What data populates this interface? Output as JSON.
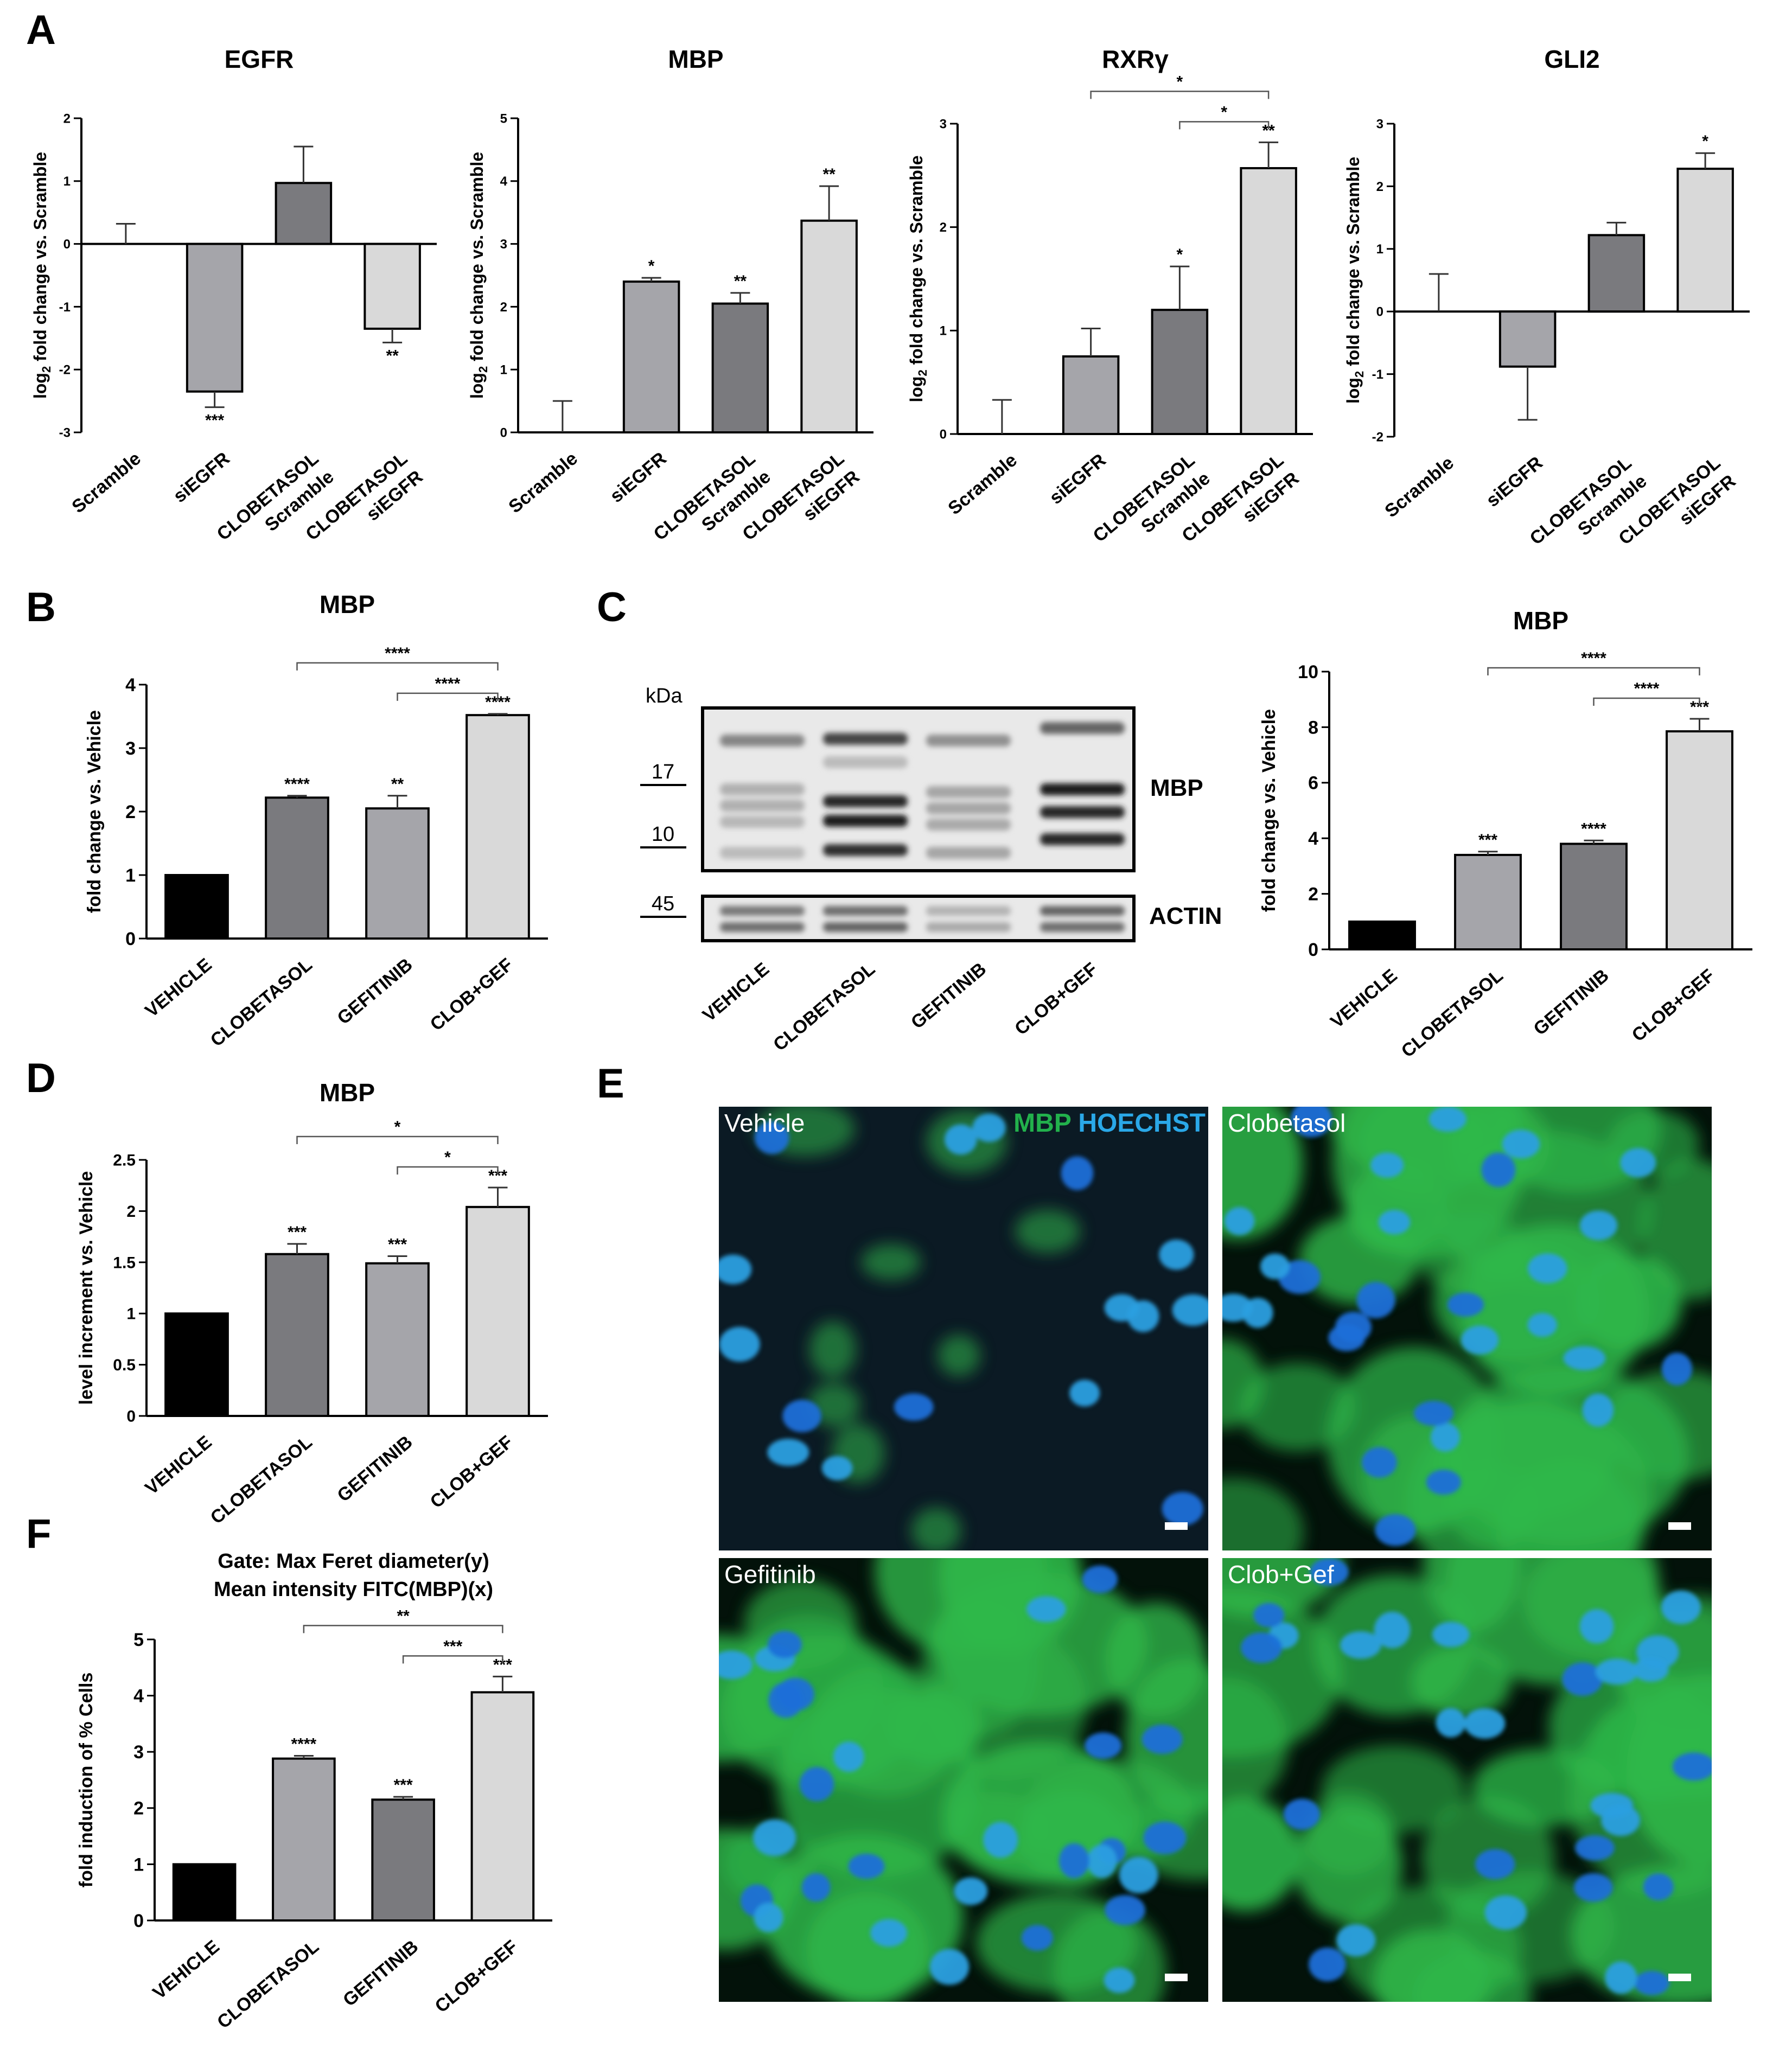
{
  "panels": {
    "A": "A",
    "B": "B",
    "C": "C",
    "D": "D",
    "E": "E",
    "F": "F"
  },
  "colors": {
    "black": "#000000",
    "light_gray": "#d9d9d9",
    "mid_gray": "#a5a5aa",
    "dark_gray": "#7a7a7e",
    "mbp_green": "#22b14c",
    "hoechst_blue": "#2aa8e8"
  },
  "chart_data": [
    {
      "id": "A-EGFR",
      "type": "bar",
      "title": "EGFR",
      "ylabel": "log2 fold change vs. Scramble",
      "ylim": [
        -3,
        2
      ],
      "yticks": [
        "-3",
        "-2",
        "-1",
        "0",
        "1",
        "2"
      ],
      "categories": [
        "Scramble",
        "siEGFR",
        "CLOBETASOL Scramble",
        "CLOBETASOL siEGFR"
      ],
      "category_lines": [
        [
          "Scramble"
        ],
        [
          "siEGFR"
        ],
        [
          "CLOBETASOL",
          "Scramble"
        ],
        [
          "CLOBETASOL",
          "siEGFR"
        ]
      ],
      "values": [
        0,
        -2.35,
        0.97,
        -1.35
      ],
      "errors": [
        0.32,
        0.25,
        0.58,
        0.22
      ],
      "colors": [
        "#ffffff",
        "#a5a5aa",
        "#7a7a7e",
        "#d9d9d9"
      ],
      "stars": [
        "",
        "***",
        "",
        "**"
      ],
      "brackets": []
    },
    {
      "id": "A-MBP",
      "type": "bar",
      "title": "MBP",
      "ylabel": "log2 fold change vs. Scramble",
      "ylim": [
        0,
        5
      ],
      "yticks": [
        "0",
        "1",
        "2",
        "3",
        "4",
        "5"
      ],
      "categories": [
        "Scramble",
        "siEGFR",
        "CLOBETASOL Scramble",
        "CLOBETASOL siEGFR"
      ],
      "category_lines": [
        [
          "Scramble"
        ],
        [
          "siEGFR"
        ],
        [
          "CLOBETASOL",
          "Scramble"
        ],
        [
          "CLOBETASOL",
          "siEGFR"
        ]
      ],
      "values": [
        0,
        2.4,
        2.05,
        3.37
      ],
      "errors": [
        0.5,
        0.06,
        0.17,
        0.55
      ],
      "colors": [
        "#ffffff",
        "#a5a5aa",
        "#7a7a7e",
        "#d9d9d9"
      ],
      "stars": [
        "",
        "*",
        "**",
        "**"
      ],
      "brackets": []
    },
    {
      "id": "A-RXRg",
      "type": "bar",
      "title": "RXRγ",
      "ylabel": "log2 fold change vs. Scramble",
      "ylim": [
        0,
        3
      ],
      "yticks": [
        "0",
        "1",
        "2",
        "3"
      ],
      "categories": [
        "Scramble",
        "siEGFR",
        "CLOBETASOL Scramble",
        "CLOBETASOL siEGFR"
      ],
      "category_lines": [
        [
          "Scramble"
        ],
        [
          "siEGFR"
        ],
        [
          "CLOBETASOL",
          "Scramble"
        ],
        [
          "CLOBETASOL",
          "siEGFR"
        ]
      ],
      "values": [
        0,
        0.75,
        1.2,
        2.57
      ],
      "errors": [
        0.33,
        0.27,
        0.42,
        0.25
      ],
      "colors": [
        "#ffffff",
        "#a5a5aa",
        "#7a7a7e",
        "#d9d9d9"
      ],
      "stars": [
        "",
        "",
        "*",
        "**"
      ],
      "brackets": [
        {
          "from": 1,
          "to": 3,
          "label": "*",
          "level": 2
        },
        {
          "from": 2,
          "to": 3,
          "label": "*",
          "level": 1
        }
      ]
    },
    {
      "id": "A-GLI2",
      "type": "bar",
      "title": "GLI2",
      "ylabel": "log2 fold change vs. Scramble",
      "ylim": [
        -2,
        3
      ],
      "yticks": [
        "-2",
        "-1",
        "0",
        "1",
        "2",
        "3"
      ],
      "categories": [
        "Scramble",
        "siEGFR",
        "CLOBETASOL Scramble",
        "CLOBETASOL siEGFR"
      ],
      "category_lines": [
        [
          "Scramble"
        ],
        [
          "siEGFR"
        ],
        [
          "CLOBETASOL",
          "Scramble"
        ],
        [
          "CLOBETASOL",
          "siEGFR"
        ]
      ],
      "values": [
        0,
        -0.88,
        1.22,
        2.28
      ],
      "errors": [
        0.6,
        0.85,
        0.2,
        0.25
      ],
      "colors": [
        "#ffffff",
        "#a5a5aa",
        "#7a7a7e",
        "#d9d9d9"
      ],
      "stars": [
        "",
        "",
        "",
        "*"
      ],
      "brackets": []
    },
    {
      "id": "B",
      "type": "bar",
      "title": "MBP",
      "ylabel": "fold change vs. Vehicle",
      "ylim": [
        0,
        4
      ],
      "yticks": [
        "0",
        "1",
        "2",
        "3",
        "4"
      ],
      "categories": [
        "VEHICLE",
        "CLOBETASOL",
        "GEFITINIB",
        "CLOB+GEF"
      ],
      "category_lines": [
        [
          "VEHICLE"
        ],
        [
          "CLOBETASOL"
        ],
        [
          "GEFITINIB"
        ],
        [
          "CLOB+GEF"
        ]
      ],
      "values": [
        1.0,
        2.22,
        2.05,
        3.52
      ],
      "errors": [
        0,
        0.03,
        0.2,
        0.02
      ],
      "colors": [
        "#000000",
        "#7a7a7e",
        "#a5a5aa",
        "#d9d9d9"
      ],
      "stars": [
        "",
        "****",
        "**",
        "****"
      ],
      "brackets": [
        {
          "from": 1,
          "to": 3,
          "label": "****",
          "level": 2
        },
        {
          "from": 2,
          "to": 3,
          "label": "****",
          "level": 1
        }
      ]
    },
    {
      "id": "C-quant",
      "type": "bar",
      "title": "MBP",
      "ylabel": "fold change vs. Vehicle",
      "ylim": [
        0,
        10
      ],
      "yticks": [
        "0",
        "2",
        "4",
        "6",
        "8",
        "10"
      ],
      "categories": [
        "VEHICLE",
        "CLOBETASOL",
        "GEFITINIB",
        "CLOB+GEF"
      ],
      "category_lines": [
        [
          "VEHICLE"
        ],
        [
          "CLOBETASOL"
        ],
        [
          "GEFITINIB"
        ],
        [
          "CLOB+GEF"
        ]
      ],
      "values": [
        1.0,
        3.4,
        3.8,
        7.85
      ],
      "errors": [
        0,
        0.12,
        0.12,
        0.45
      ],
      "colors": [
        "#000000",
        "#a5a5aa",
        "#7a7a7e",
        "#d9d9d9"
      ],
      "stars": [
        "",
        "***",
        "****",
        "***"
      ],
      "brackets": [
        {
          "from": 1,
          "to": 3,
          "label": "****",
          "level": 2
        },
        {
          "from": 2,
          "to": 3,
          "label": "****",
          "level": 1
        }
      ]
    },
    {
      "id": "D",
      "type": "bar",
      "title": "MBP",
      "ylabel": "level increment vs. Vehicle",
      "ylim": [
        0,
        2.5
      ],
      "yticks": [
        "0",
        "0.5",
        "1",
        "1.5",
        "2",
        "2.5"
      ],
      "categories": [
        "VEHICLE",
        "CLOBETASOL",
        "GEFITINIB",
        "CLOB+GEF"
      ],
      "category_lines": [
        [
          "VEHICLE"
        ],
        [
          "CLOBETASOL"
        ],
        [
          "GEFITINIB"
        ],
        [
          "CLOB+GEF"
        ]
      ],
      "values": [
        1.0,
        1.58,
        1.49,
        2.04
      ],
      "errors": [
        0,
        0.1,
        0.07,
        0.19
      ],
      "colors": [
        "#000000",
        "#7a7a7e",
        "#a5a5aa",
        "#d9d9d9"
      ],
      "stars": [
        "",
        "***",
        "***",
        "***"
      ],
      "brackets": [
        {
          "from": 1,
          "to": 3,
          "label": "*",
          "level": 2
        },
        {
          "from": 2,
          "to": 3,
          "label": "*",
          "level": 1
        }
      ]
    },
    {
      "id": "F",
      "type": "bar",
      "title": "Gate: Max Feret diameter(y)",
      "subtitle": "Mean intensity FITC(MBP)(x)",
      "ylabel": "fold induction of % Cells",
      "ylim": [
        0,
        5
      ],
      "yticks": [
        "0",
        "1",
        "2",
        "3",
        "4",
        "5"
      ],
      "categories": [
        "VEHICLE",
        "CLOBETASOL",
        "GEFITINIB",
        "CLOB+GEF"
      ],
      "category_lines": [
        [
          "VEHICLE"
        ],
        [
          "CLOBETASOL"
        ],
        [
          "GEFITINIB"
        ],
        [
          "CLOB+GEF"
        ]
      ],
      "values": [
        1.0,
        2.88,
        2.15,
        4.06
      ],
      "errors": [
        0,
        0.05,
        0.05,
        0.28
      ],
      "colors": [
        "#000000",
        "#a5a5aa",
        "#7a7a7e",
        "#d9d9d9"
      ],
      "stars": [
        "",
        "****",
        "***",
        "***"
      ],
      "brackets": [
        {
          "from": 1,
          "to": 3,
          "label": "**",
          "level": 2
        },
        {
          "from": 2,
          "to": 3,
          "label": "***",
          "level": 1
        }
      ]
    }
  ],
  "western_blot": {
    "kda_label": "kDa",
    "markers": [
      "17",
      "10",
      "45"
    ],
    "bands": [
      "MBP",
      "ACTIN"
    ],
    "lanes": [
      "VEHICLE",
      "CLOBETASOL",
      "GEFITINIB",
      "CLOB+GEF"
    ]
  },
  "microscopy": {
    "legend_mbp": "MBP",
    "legend_hoechst": "HOECHST",
    "panels": [
      {
        "label": "Vehicle",
        "intensity": "low"
      },
      {
        "label": "Clobetasol",
        "intensity": "high"
      },
      {
        "label": "Gefitinib",
        "intensity": "high"
      },
      {
        "label": "Clob+Gef",
        "intensity": "high"
      }
    ]
  }
}
